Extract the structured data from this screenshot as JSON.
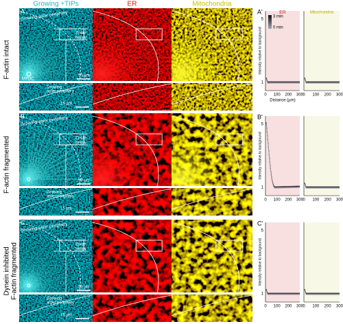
{
  "columns": [
    "Growing +TIPs",
    "ER",
    "Mitochondria"
  ],
  "rows": [
    {
      "panel": "A",
      "label": [
        "F-actin intact"
      ],
      "plot_panel": "A'",
      "y_ticks": [
        "1",
        "5"
      ]
    },
    {
      "panel": "B",
      "label": [
        "F-actin fragmented"
      ],
      "plot_panel": "B'",
      "y_ticks": [
        "1",
        "5"
      ]
    },
    {
      "panel": "C",
      "label": [
        "Dynein inhibited",
        "F-actin fragmented"
      ],
      "plot_panel": "C'",
      "y_ticks": [
        "1",
        "5"
      ]
    }
  ],
  "annotations": {
    "periphery": "Growing aster periphery",
    "zoom": [
      "Zoom",
      "below"
    ],
    "mtoc": "MTOC",
    "scale_main": "50 µm",
    "scale_zoom": "15 µm",
    "zoom_periphery": [
      "Growing",
      "aster periphery"
    ]
  },
  "plots": {
    "titles": [
      "ER",
      "Mitochondria"
    ],
    "legend": [
      "3 min",
      "0 min"
    ],
    "y_label": "Intensity relative to background",
    "x_label": "Distance (µm)",
    "x_ticks": [
      "0",
      "100",
      "200",
      "300"
    ]
  }
}
